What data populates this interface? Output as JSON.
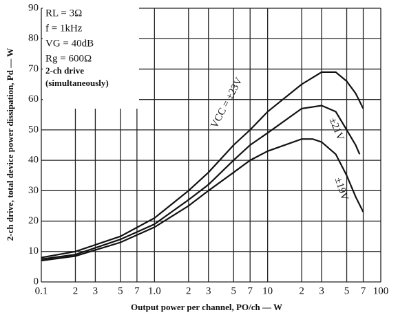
{
  "chart_data": {
    "type": "line",
    "x_label": "Output power per channel, PO/ch — W",
    "y_label": "2-ch drive, total device power dissipation, Pd — W",
    "annotations": [
      "RL = 3Ω",
      "f = 1kHz",
      "VG = 40dB",
      "Rg = 600Ω",
      "2-ch drive",
      "(simultaneously)"
    ],
    "xscale": "log",
    "grid": true,
    "xlim": [
      0.1,
      100
    ],
    "ylim": [
      0,
      90
    ],
    "xticks": [
      0.1,
      {
        "value": 0.2,
        "label": "2"
      },
      {
        "value": 0.3,
        "label": "3"
      },
      {
        "value": 0.5,
        "label": "5"
      },
      {
        "value": 0.7,
        "label": "7"
      },
      {
        "value": 1,
        "label": "1.0"
      },
      2,
      3,
      5,
      7,
      10,
      {
        "value": 20,
        "label": "2"
      },
      {
        "value": 30,
        "label": "3"
      },
      {
        "value": 50,
        "label": "5"
      },
      {
        "value": 70,
        "label": "7"
      },
      100
    ],
    "yticks": [
      0,
      10,
      20,
      30,
      40,
      50,
      60,
      70,
      80,
      90
    ],
    "series": [
      {
        "name": "VCC = ±23V",
        "color": "#111111",
        "x": [
          0.1,
          0.2,
          0.5,
          1,
          2,
          3,
          5,
          7,
          10,
          20,
          30,
          40,
          50,
          60,
          70
        ],
        "values": [
          8,
          10,
          15,
          21,
          30,
          36,
          45,
          50,
          56,
          65,
          69,
          69,
          66,
          62,
          57
        ]
      },
      {
        "name": "±21V",
        "color": "#111111",
        "x": [
          0.1,
          0.2,
          0.5,
          1,
          2,
          3,
          5,
          7,
          10,
          20,
          30,
          40,
          50,
          60,
          65
        ],
        "values": [
          7.5,
          9,
          14,
          19,
          27,
          32,
          40,
          45,
          49,
          57,
          58,
          56,
          50,
          45,
          42
        ]
      },
      {
        "name": "±19V",
        "color": "#111111",
        "x": [
          0.1,
          0.2,
          0.5,
          1,
          2,
          3,
          5,
          7,
          10,
          20,
          25,
          30,
          40,
          50,
          60,
          70
        ],
        "values": [
          7,
          8.5,
          13,
          18,
          25,
          30,
          36,
          40,
          43,
          47,
          47,
          46,
          42,
          35,
          28,
          23
        ]
      }
    ]
  }
}
